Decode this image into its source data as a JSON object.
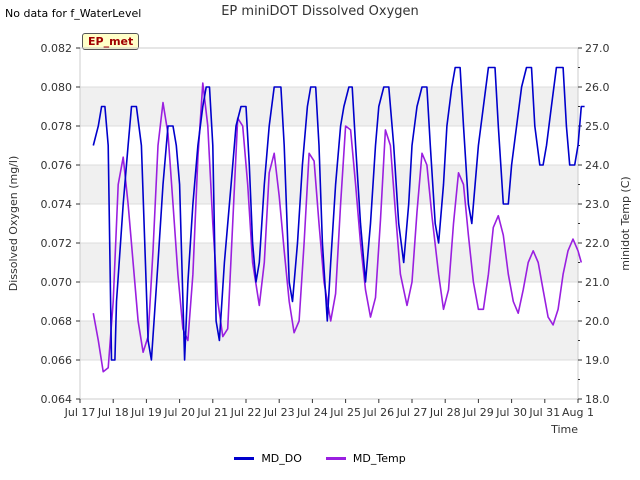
{
  "header": {
    "no_data_text": "No data for f_WaterLevel",
    "title": "EP miniDOT Dissolved Oxygen",
    "site_badge": "EP_met"
  },
  "legend": {
    "items": [
      {
        "label": "MD_DO",
        "color": "#0000cc"
      },
      {
        "label": "MD_Temp",
        "color": "#9a1fe0"
      }
    ]
  },
  "chart_data": {
    "type": "line",
    "title": "EP miniDOT Dissolved Oxygen",
    "xlabel": "Time",
    "ylabel": "Dissolved Oxygen (mg/l)",
    "y2label": "minidot Temp (C)",
    "xlim": [
      17,
      32
    ],
    "ylim": [
      0.064,
      0.082
    ],
    "y2lim": [
      18.0,
      27.0
    ],
    "x_ticks": [
      {
        "value": 17,
        "label": "Jul 17"
      },
      {
        "value": 18,
        "label": "Jul 18"
      },
      {
        "value": 19,
        "label": "Jul 19"
      },
      {
        "value": 20,
        "label": "Jul 20"
      },
      {
        "value": 21,
        "label": "Jul 21"
      },
      {
        "value": 22,
        "label": "Jul 22"
      },
      {
        "value": 23,
        "label": "Jul 23"
      },
      {
        "value": 24,
        "label": "Jul 24"
      },
      {
        "value": 25,
        "label": "Jul 25"
      },
      {
        "value": 26,
        "label": "Jul 26"
      },
      {
        "value": 27,
        "label": "Jul 27"
      },
      {
        "value": 28,
        "label": "Jul 28"
      },
      {
        "value": 29,
        "label": "Jul 29"
      },
      {
        "value": 30,
        "label": "Jul 30"
      },
      {
        "value": 31,
        "label": "Jul 31"
      },
      {
        "value": 32,
        "label": "Aug 1"
      }
    ],
    "y_ticks": [
      "0.064",
      "0.066",
      "0.068",
      "0.070",
      "0.072",
      "0.074",
      "0.076",
      "0.078",
      "0.080",
      "0.082"
    ],
    "y2_ticks": [
      "18.0",
      "19.0",
      "20.0",
      "21.0",
      "22.0",
      "23.0",
      "24.0",
      "25.0",
      "26.0",
      "27.0"
    ],
    "series": [
      {
        "name": "MD_DO",
        "axis": "left",
        "color": "#0000cc",
        "points": [
          [
            17.4,
            0.077
          ],
          [
            17.55,
            0.078
          ],
          [
            17.65,
            0.079
          ],
          [
            17.75,
            0.079
          ],
          [
            17.85,
            0.077
          ],
          [
            17.95,
            0.066
          ],
          [
            18.05,
            0.066
          ],
          [
            18.1,
            0.069
          ],
          [
            18.3,
            0.074
          ],
          [
            18.45,
            0.077
          ],
          [
            18.55,
            0.079
          ],
          [
            18.7,
            0.079
          ],
          [
            18.85,
            0.077
          ],
          [
            19.05,
            0.067
          ],
          [
            19.15,
            0.066
          ],
          [
            19.35,
            0.071
          ],
          [
            19.5,
            0.075
          ],
          [
            19.65,
            0.078
          ],
          [
            19.8,
            0.078
          ],
          [
            19.9,
            0.077
          ],
          [
            20.0,
            0.075
          ],
          [
            20.15,
            0.066
          ],
          [
            20.25,
            0.07
          ],
          [
            20.4,
            0.074
          ],
          [
            20.55,
            0.077
          ],
          [
            20.7,
            0.079
          ],
          [
            20.8,
            0.08
          ],
          [
            20.9,
            0.08
          ],
          [
            21.0,
            0.077
          ],
          [
            21.1,
            0.068
          ],
          [
            21.2,
            0.067
          ],
          [
            21.35,
            0.071
          ],
          [
            21.55,
            0.075
          ],
          [
            21.7,
            0.078
          ],
          [
            21.85,
            0.079
          ],
          [
            22.0,
            0.079
          ],
          [
            22.1,
            0.076
          ],
          [
            22.2,
            0.072
          ],
          [
            22.3,
            0.07
          ],
          [
            22.4,
            0.071
          ],
          [
            22.55,
            0.075
          ],
          [
            22.7,
            0.078
          ],
          [
            22.85,
            0.08
          ],
          [
            23.05,
            0.08
          ],
          [
            23.15,
            0.077
          ],
          [
            23.3,
            0.07
          ],
          [
            23.4,
            0.069
          ],
          [
            23.55,
            0.072
          ],
          [
            23.7,
            0.076
          ],
          [
            23.85,
            0.079
          ],
          [
            23.95,
            0.08
          ],
          [
            24.1,
            0.08
          ],
          [
            24.2,
            0.077
          ],
          [
            24.3,
            0.072
          ],
          [
            24.45,
            0.068
          ],
          [
            24.55,
            0.071
          ],
          [
            24.7,
            0.075
          ],
          [
            24.85,
            0.078
          ],
          [
            24.95,
            0.079
          ],
          [
            25.1,
            0.08
          ],
          [
            25.2,
            0.08
          ],
          [
            25.3,
            0.077
          ],
          [
            25.45,
            0.073
          ],
          [
            25.6,
            0.07
          ],
          [
            25.75,
            0.073
          ],
          [
            25.9,
            0.077
          ],
          [
            26.0,
            0.079
          ],
          [
            26.15,
            0.08
          ],
          [
            26.3,
            0.08
          ],
          [
            26.45,
            0.077
          ],
          [
            26.6,
            0.073
          ],
          [
            26.75,
            0.071
          ],
          [
            26.9,
            0.074
          ],
          [
            27.0,
            0.077
          ],
          [
            27.15,
            0.079
          ],
          [
            27.3,
            0.08
          ],
          [
            27.45,
            0.08
          ],
          [
            27.55,
            0.077
          ],
          [
            27.7,
            0.073
          ],
          [
            27.8,
            0.072
          ],
          [
            27.95,
            0.075
          ],
          [
            28.05,
            0.078
          ],
          [
            28.2,
            0.08
          ],
          [
            28.3,
            0.081
          ],
          [
            28.45,
            0.081
          ],
          [
            28.55,
            0.078
          ],
          [
            28.7,
            0.074
          ],
          [
            28.8,
            0.073
          ],
          [
            28.9,
            0.075
          ],
          [
            29.0,
            0.077
          ],
          [
            29.15,
            0.079
          ],
          [
            29.3,
            0.081
          ],
          [
            29.5,
            0.081
          ],
          [
            29.6,
            0.078
          ],
          [
            29.75,
            0.074
          ],
          [
            29.9,
            0.074
          ],
          [
            30.0,
            0.076
          ],
          [
            30.15,
            0.078
          ],
          [
            30.3,
            0.08
          ],
          [
            30.45,
            0.081
          ],
          [
            30.6,
            0.081
          ],
          [
            30.7,
            0.078
          ],
          [
            30.85,
            0.076
          ],
          [
            30.95,
            0.076
          ],
          [
            31.05,
            0.077
          ],
          [
            31.2,
            0.079
          ],
          [
            31.35,
            0.081
          ],
          [
            31.55,
            0.081
          ],
          [
            31.65,
            0.078
          ],
          [
            31.75,
            0.076
          ],
          [
            31.9,
            0.076
          ],
          [
            32.0,
            0.077
          ],
          [
            32.1,
            0.079
          ],
          [
            32.2,
            0.079
          ]
        ]
      },
      {
        "name": "MD_Temp",
        "axis": "right",
        "color": "#9a1fe0",
        "points": [
          [
            17.4,
            20.2
          ],
          [
            17.55,
            19.5
          ],
          [
            17.7,
            18.7
          ],
          [
            17.85,
            18.8
          ],
          [
            18.0,
            20.5
          ],
          [
            18.15,
            23.5
          ],
          [
            18.3,
            24.2
          ],
          [
            18.45,
            23.0
          ],
          [
            18.6,
            21.5
          ],
          [
            18.75,
            20.0
          ],
          [
            18.9,
            19.2
          ],
          [
            19.05,
            19.6
          ],
          [
            19.2,
            21.8
          ],
          [
            19.35,
            24.5
          ],
          [
            19.5,
            25.6
          ],
          [
            19.65,
            24.8
          ],
          [
            19.8,
            23.0
          ],
          [
            19.95,
            21.2
          ],
          [
            20.1,
            19.8
          ],
          [
            20.25,
            19.5
          ],
          [
            20.4,
            21.2
          ],
          [
            20.55,
            24.2
          ],
          [
            20.7,
            26.1
          ],
          [
            20.85,
            25.0
          ],
          [
            21.0,
            22.5
          ],
          [
            21.15,
            20.5
          ],
          [
            21.3,
            19.6
          ],
          [
            21.45,
            19.8
          ],
          [
            21.6,
            22.5
          ],
          [
            21.75,
            25.2
          ],
          [
            21.9,
            25.0
          ],
          [
            22.05,
            23.5
          ],
          [
            22.2,
            21.5
          ],
          [
            22.4,
            20.4
          ],
          [
            22.55,
            21.5
          ],
          [
            22.7,
            23.8
          ],
          [
            22.85,
            24.3
          ],
          [
            23.0,
            23.2
          ],
          [
            23.15,
            21.8
          ],
          [
            23.3,
            20.5
          ],
          [
            23.45,
            19.7
          ],
          [
            23.6,
            20.0
          ],
          [
            23.75,
            22.0
          ],
          [
            23.9,
            24.3
          ],
          [
            24.05,
            24.1
          ],
          [
            24.2,
            22.5
          ],
          [
            24.35,
            21.0
          ],
          [
            24.55,
            20.0
          ],
          [
            24.7,
            20.7
          ],
          [
            24.85,
            23.0
          ],
          [
            25.0,
            25.0
          ],
          [
            25.15,
            24.9
          ],
          [
            25.3,
            23.5
          ],
          [
            25.45,
            22.0
          ],
          [
            25.6,
            20.8
          ],
          [
            25.75,
            20.1
          ],
          [
            25.9,
            20.6
          ],
          [
            26.05,
            22.6
          ],
          [
            26.2,
            24.9
          ],
          [
            26.35,
            24.5
          ],
          [
            26.5,
            22.8
          ],
          [
            26.65,
            21.2
          ],
          [
            26.85,
            20.4
          ],
          [
            27.0,
            21.0
          ],
          [
            27.15,
            22.8
          ],
          [
            27.3,
            24.3
          ],
          [
            27.45,
            24.0
          ],
          [
            27.6,
            22.7
          ],
          [
            27.8,
            21.2
          ],
          [
            27.95,
            20.3
          ],
          [
            28.1,
            20.8
          ],
          [
            28.25,
            22.5
          ],
          [
            28.4,
            23.8
          ],
          [
            28.55,
            23.5
          ],
          [
            28.7,
            22.2
          ],
          [
            28.85,
            21.0
          ],
          [
            29.0,
            20.3
          ],
          [
            29.15,
            20.3
          ],
          [
            29.3,
            21.2
          ],
          [
            29.45,
            22.4
          ],
          [
            29.6,
            22.7
          ],
          [
            29.75,
            22.2
          ],
          [
            29.9,
            21.2
          ],
          [
            30.05,
            20.5
          ],
          [
            30.2,
            20.2
          ],
          [
            30.35,
            20.8
          ],
          [
            30.5,
            21.5
          ],
          [
            30.65,
            21.8
          ],
          [
            30.8,
            21.5
          ],
          [
            30.95,
            20.8
          ],
          [
            31.1,
            20.1
          ],
          [
            31.25,
            19.9
          ],
          [
            31.4,
            20.3
          ],
          [
            31.55,
            21.2
          ],
          [
            31.7,
            21.8
          ],
          [
            31.85,
            22.1
          ],
          [
            32.0,
            21.8
          ],
          [
            32.1,
            21.5
          ]
        ]
      }
    ]
  }
}
